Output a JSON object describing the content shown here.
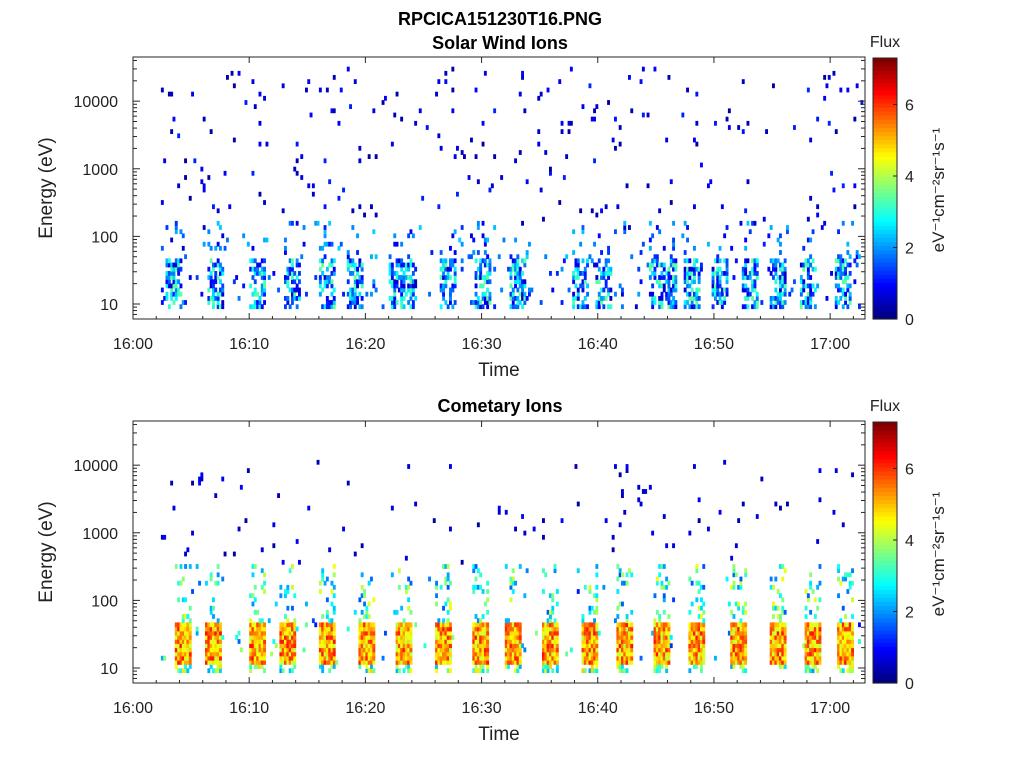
{
  "figure": {
    "title": "RPCICA151230T16.PNG",
    "colormap": "jet"
  },
  "chart_data": [
    {
      "type": "heatmap",
      "title": "Solar Wind Ions",
      "xlabel": "Time",
      "ylabel": "Energy (eV)",
      "x_ticks": [
        "16:00",
        "16:10",
        "16:20",
        "16:30",
        "16:40",
        "16:50",
        "17:00"
      ],
      "x_range_minutes": [
        0,
        63
      ],
      "y_scale": "log",
      "y_ticks": [
        "10",
        "100",
        "1000",
        "10000"
      ],
      "y_range": [
        6,
        45000
      ],
      "colorbar": {
        "label": "Flux",
        "unit": "eV⁻¹cm⁻²sr⁻¹s⁻¹",
        "range": [
          0,
          7.3
        ],
        "ticks": [
          "0",
          "2",
          "4",
          "6"
        ]
      },
      "data": {
        "time_min": 2.2,
        "time_max": 62.8,
        "sparse_high": {
          "energy_min": 150,
          "energy_max": 30000,
          "value_range": [
            0.2,
            1.2
          ],
          "density": 0.1
        },
        "low_band": {
          "energy_min": 8,
          "energy_max": 45,
          "value_range": [
            0.5,
            3.5
          ]
        },
        "mid_scatter": {
          "energy_min": 45,
          "energy_max": 150,
          "value_range": [
            0.5,
            2.5
          ],
          "density": 0.04
        },
        "bursts_minutes": [
          3.5,
          7,
          10.5,
          13.5,
          16.5,
          19,
          22.5,
          23.5,
          27,
          30,
          33,
          38.5,
          40.5,
          45,
          46,
          48,
          50.5,
          53,
          55.5,
          58,
          61
        ]
      }
    },
    {
      "type": "heatmap",
      "title": "Cometary Ions",
      "xlabel": "Time",
      "ylabel": "Energy (eV)",
      "x_ticks": [
        "16:00",
        "16:10",
        "16:20",
        "16:30",
        "16:40",
        "16:50",
        "17:00"
      ],
      "x_range_minutes": [
        0,
        63
      ],
      "y_scale": "log",
      "y_ticks": [
        "10",
        "100",
        "1000",
        "10000"
      ],
      "y_range": [
        6,
        45000
      ],
      "colorbar": {
        "label": "Flux",
        "unit": "eV⁻¹cm⁻²sr⁻¹s⁻¹",
        "range": [
          0,
          7.3
        ],
        "ticks": [
          "0",
          "2",
          "4",
          "6"
        ]
      },
      "data": {
        "time_min": 2.2,
        "time_max": 62.8,
        "bursts_minutes": [
          4.3,
          6.8,
          10.5,
          13.2,
          16.5,
          20,
          23.2,
          26.5,
          29.7,
          32.6,
          35.8,
          39.3,
          42.2,
          45.5,
          48.5,
          52,
          55.5,
          58.5,
          61.3
        ],
        "burst_peak_value": 6.3,
        "burst_energy_range": [
          10,
          45
        ],
        "tail_energy_range": [
          45,
          300
        ],
        "sparse_high": {
          "energy_min": 300,
          "energy_max": 11000,
          "value_range": [
            0.2,
            1.0
          ],
          "density": 0.012
        }
      }
    }
  ]
}
